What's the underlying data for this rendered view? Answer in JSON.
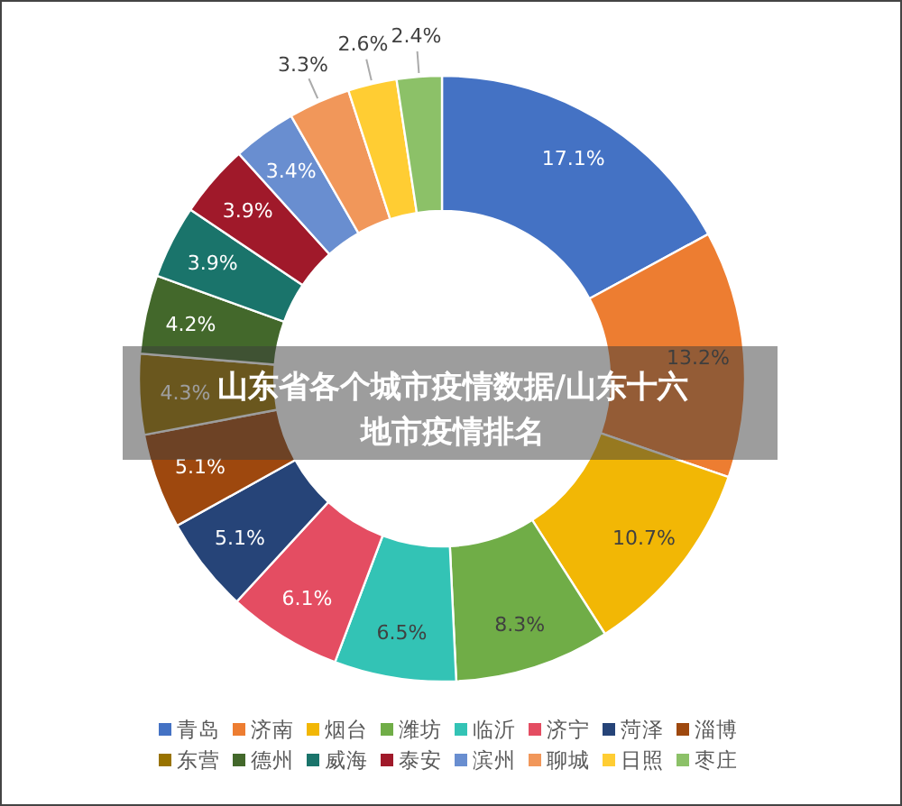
{
  "chart_data": {
    "type": "donut",
    "title": "山东省各个城市疫情数据/山东十六地市疫情排名",
    "categories": [
      "青岛",
      "济南",
      "烟台",
      "潍坊",
      "临沂",
      "济宁",
      "菏泽",
      "淄博",
      "东营",
      "德州",
      "威海",
      "泰安",
      "滨州",
      "聊城",
      "日照",
      "枣庄"
    ],
    "values": [
      17.1,
      13.2,
      10.7,
      8.3,
      6.5,
      6.1,
      5.1,
      5.1,
      4.3,
      4.2,
      3.9,
      3.9,
      3.4,
      3.3,
      2.6,
      2.4
    ],
    "value_labels": [
      "17.1%",
      "13.2%",
      "10.7%",
      "8.3%",
      "6.5%",
      "6.1%",
      "5.1%",
      "5.1%",
      "4.3%",
      "4.2%",
      "3.9%",
      "3.9%",
      "3.4%",
      "3.3%",
      "2.6%",
      "2.4%"
    ],
    "colors": [
      "#4472c4",
      "#ed7d31",
      "#f2b705",
      "#70ad47",
      "#33c3b5",
      "#e44d62",
      "#264478",
      "#9e480e",
      "#997300",
      "#43682b",
      "#1a746b",
      "#a0192a",
      "#698ed0",
      "#f1975a",
      "#ffcd33",
      "#8cc168"
    ],
    "legend": "bottom"
  }
}
